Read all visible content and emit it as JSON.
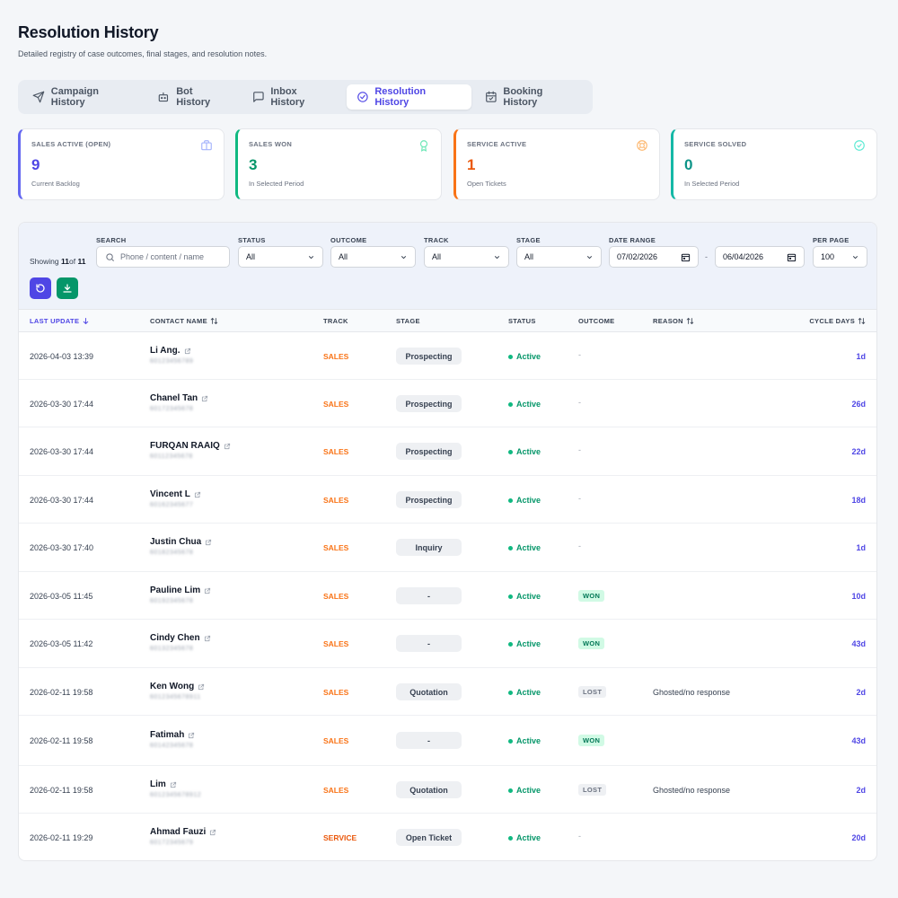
{
  "page": {
    "title": "Resolution History",
    "subtitle": "Detailed registry of case outcomes, final stages, and resolution notes."
  },
  "tabs": [
    {
      "label": "Campaign History",
      "icon": "send-icon"
    },
    {
      "label": "Bot History",
      "icon": "bot-icon"
    },
    {
      "label": "Inbox History",
      "icon": "message-icon"
    },
    {
      "label": "Resolution History",
      "icon": "check-circle-icon",
      "active": true
    },
    {
      "label": "Booking History",
      "icon": "calendar-icon"
    }
  ],
  "stats": [
    {
      "label": "SALES ACTIVE (OPEN)",
      "value": "9",
      "sub": "Current Backlog",
      "color": "#6366f1",
      "icon": "briefcase-icon"
    },
    {
      "label": "SALES WON",
      "value": "3",
      "sub": "In Selected Period",
      "color": "#10b981",
      "icon": "award-icon"
    },
    {
      "label": "SERVICE ACTIVE",
      "value": "1",
      "sub": "Open Tickets",
      "color": "#f97316",
      "icon": "lifebuoy-icon"
    },
    {
      "label": "SERVICE SOLVED",
      "value": "0",
      "sub": "In Selected Period",
      "color": "#14b8a6",
      "icon": "check-circle-icon"
    }
  ],
  "filters": {
    "showing_prefix": "Showing",
    "showing_count": "11",
    "showing_of": "of",
    "showing_total": "11",
    "search_label": "SEARCH",
    "search_placeholder": "Phone / content / name",
    "status_label": "STATUS",
    "status_value": "All",
    "outcome_label": "OUTCOME",
    "outcome_value": "All",
    "track_label": "TRACK",
    "track_value": "All",
    "stage_label": "STAGE",
    "stage_value": "All",
    "date_label": "DATE RANGE",
    "date_from": "07/02/2026",
    "date_sep": "-",
    "date_to": "06/04/2026",
    "per_page_label": "PER PAGE",
    "per_page_value": "100"
  },
  "columns": {
    "last_update": "LAST UPDATE",
    "contact_name": "CONTACT NAME",
    "track": "TRACK",
    "stage": "STAGE",
    "status": "STATUS",
    "outcome": "OUTCOME",
    "reason": "REASON",
    "cycle_days": "CYCLE DAYS"
  },
  "rows": [
    {
      "date": "2026-04-03 13:39",
      "name": "Li Ang.",
      "phone": "60123456789",
      "track": "SALES",
      "stage": "Prospecting",
      "status": "Active",
      "outcome": "-",
      "reason": "",
      "cycle": "1d"
    },
    {
      "date": "2026-03-30 17:44",
      "name": "Chanel Tan",
      "phone": "60172345678",
      "track": "SALES",
      "stage": "Prospecting",
      "status": "Active",
      "outcome": "-",
      "reason": "",
      "cycle": "26d"
    },
    {
      "date": "2026-03-30 17:44",
      "name": "FURQAN RAAIQ",
      "phone": "60112345678",
      "track": "SALES",
      "stage": "Prospecting",
      "status": "Active",
      "outcome": "-",
      "reason": "",
      "cycle": "22d"
    },
    {
      "date": "2026-03-30 17:44",
      "name": "Vincent L",
      "phone": "60162345677",
      "track": "SALES",
      "stage": "Prospecting",
      "status": "Active",
      "outcome": "-",
      "reason": "",
      "cycle": "18d"
    },
    {
      "date": "2026-03-30 17:40",
      "name": "Justin Chua",
      "phone": "60182345678",
      "track": "SALES",
      "stage": "Inquiry",
      "status": "Active",
      "outcome": "-",
      "reason": "",
      "cycle": "1d"
    },
    {
      "date": "2026-03-05 11:45",
      "name": "Pauline Lim",
      "phone": "60192345678",
      "track": "SALES",
      "stage": "-",
      "status": "Active",
      "outcome": "WON",
      "reason": "",
      "cycle": "10d"
    },
    {
      "date": "2026-03-05 11:42",
      "name": "Cindy Chen",
      "phone": "60132345678",
      "track": "SALES",
      "stage": "-",
      "status": "Active",
      "outcome": "WON",
      "reason": "",
      "cycle": "43d"
    },
    {
      "date": "2026-02-11 19:58",
      "name": "Ken Wong",
      "phone": "6012345678911",
      "track": "SALES",
      "stage": "Quotation",
      "status": "Active",
      "outcome": "LOST",
      "reason": "Ghosted/no response",
      "cycle": "2d"
    },
    {
      "date": "2026-02-11 19:58",
      "name": "Fatimah",
      "phone": "60142345678",
      "track": "SALES",
      "stage": "-",
      "status": "Active",
      "outcome": "WON",
      "reason": "",
      "cycle": "43d"
    },
    {
      "date": "2026-02-11 19:58",
      "name": "Lim",
      "phone": "6012345678912",
      "track": "SALES",
      "stage": "Quotation",
      "status": "Active",
      "outcome": "LOST",
      "reason": "Ghosted/no response",
      "cycle": "2d"
    },
    {
      "date": "2026-02-11 19:29",
      "name": "Ahmad Fauzi",
      "phone": "60172345679",
      "track": "SERVICE",
      "stage": "Open Ticket",
      "status": "Active",
      "outcome": "-",
      "reason": "",
      "cycle": "20d"
    }
  ]
}
